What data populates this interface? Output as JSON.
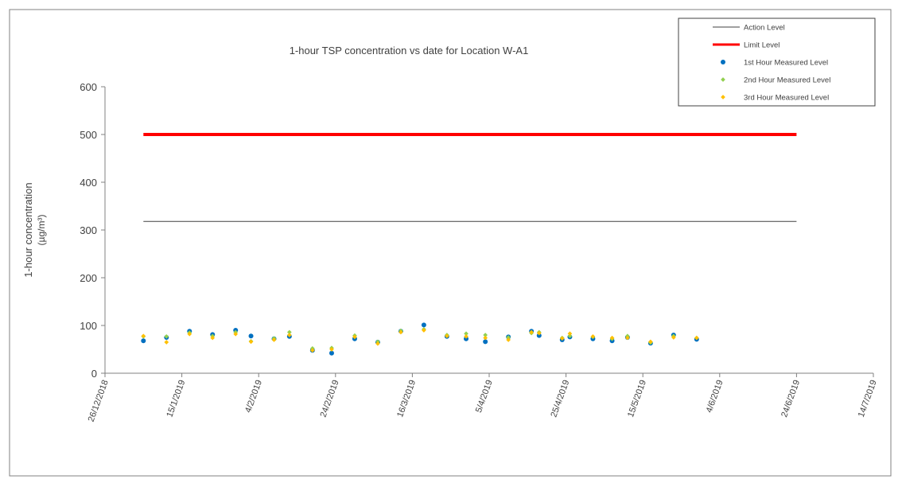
{
  "chart_data": {
    "type": "scatter",
    "title": "1-hour TSP concentration vs date for Location W-A1",
    "ylabel": [
      "1-hour concentration",
      "(µg/m³)"
    ],
    "xlim": [
      "26/12/2018",
      "14/7/2019"
    ],
    "xticks": [
      "26/12/2018",
      "15/1/2019",
      "4/2/2019",
      "24/2/2019",
      "16/3/2019",
      "5/4/2019",
      "25/4/2019",
      "15/5/2019",
      "4/6/2019",
      "24/6/2019",
      "14/7/2019"
    ],
    "ylim": [
      0,
      600
    ],
    "yticks": [
      0,
      100,
      200,
      300,
      400,
      500,
      600
    ],
    "x": [
      "5/1/2019",
      "11/1/2019",
      "17/1/2019",
      "23/1/2019",
      "29/1/2019",
      "2/2/2019",
      "8/2/2019",
      "12/2/2019",
      "18/2/2019",
      "23/2/2019",
      "1/3/2019",
      "7/3/2019",
      "13/3/2019",
      "19/3/2019",
      "25/3/2019",
      "30/3/2019",
      "4/4/2019",
      "10/4/2019",
      "16/4/2019",
      "18/4/2019",
      "24/4/2019",
      "26/4/2019",
      "2/5/2019",
      "7/5/2019",
      "11/5/2019",
      "17/5/2019",
      "23/5/2019",
      "29/5/2019"
    ],
    "series": [
      {
        "name": "Action Level",
        "mode": "line",
        "color": "#404040",
        "x": [
          "5/1/2019",
          "24/6/2019"
        ],
        "values": [
          318,
          318
        ]
      },
      {
        "name": "Limit Level",
        "mode": "line",
        "color": "#ff0000",
        "x": [
          "5/1/2019",
          "24/6/2019"
        ],
        "values": [
          500,
          500
        ]
      },
      {
        "name": "1st Hour Measured Level",
        "mode": "marker",
        "color": "#0070c0",
        "values": [
          68,
          75,
          88,
          81,
          90,
          78,
          72,
          77,
          48,
          42,
          72,
          65,
          88,
          101,
          77,
          72,
          66,
          76,
          88,
          79,
          70,
          76,
          72,
          68,
          75,
          63,
          80,
          71
        ]
      },
      {
        "name": "2nd Hour Measured Level",
        "mode": "marker",
        "color": "#92d050",
        "values": [
          77,
          77,
          85,
          78,
          86,
          67,
          73,
          86,
          52,
          53,
          79,
          66,
          89,
          92,
          80,
          83,
          80,
          75,
          84,
          86,
          74,
          78,
          76,
          72,
          78,
          64,
          78,
          74
        ]
      },
      {
        "name": "3rd Hour Measured Level",
        "mode": "marker",
        "color": "#ffc000",
        "values": [
          78,
          65,
          82,
          74,
          82,
          66,
          70,
          80,
          48,
          50,
          76,
          62,
          86,
          90,
          78,
          77,
          74,
          70,
          86,
          84,
          73,
          83,
          77,
          74,
          74,
          66,
          75,
          74
        ]
      }
    ]
  }
}
